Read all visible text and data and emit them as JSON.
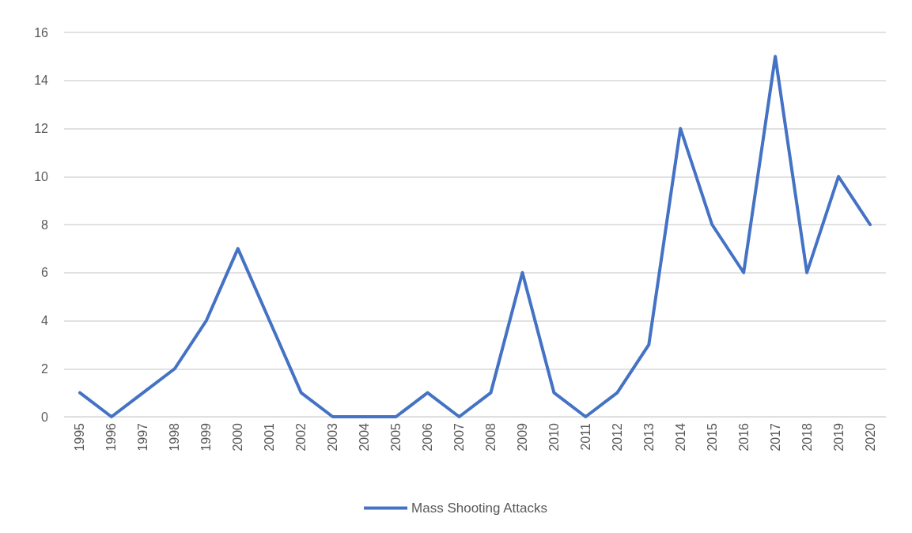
{
  "chart_data": {
    "type": "line",
    "categories": [
      "1995",
      "1996",
      "1997",
      "1998",
      "1999",
      "2000",
      "2001",
      "2002",
      "2003",
      "2004",
      "2005",
      "2006",
      "2007",
      "2008",
      "2009",
      "2010",
      "2011",
      "2012",
      "2013",
      "2014",
      "2015",
      "2016",
      "2017",
      "2018",
      "2019",
      "2020"
    ],
    "series": [
      {
        "name": "Mass Shooting Attacks",
        "color": "#4472c4",
        "values": [
          1,
          0,
          1,
          2,
          4,
          7,
          4,
          1,
          0,
          0,
          0,
          1,
          0,
          1,
          6,
          1,
          0,
          1,
          3,
          12,
          8,
          6,
          15,
          6,
          10,
          8
        ]
      }
    ],
    "ylim": [
      0,
      16
    ],
    "yticks": [
      0,
      2,
      4,
      6,
      8,
      10,
      12,
      14,
      16
    ],
    "grid": "y",
    "legend": "bottom",
    "marker": "none",
    "line_style": "solid"
  }
}
